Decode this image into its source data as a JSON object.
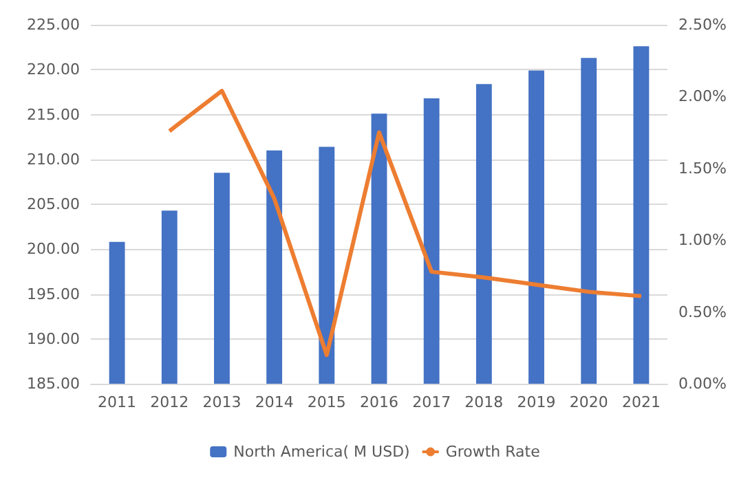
{
  "chart_data": {
    "type": "bar",
    "categories": [
      "2011",
      "2012",
      "2013",
      "2014",
      "2015",
      "2016",
      "2017",
      "2018",
      "2019",
      "2020",
      "2021"
    ],
    "series": [
      {
        "name": "North America( M USD)",
        "color": "#4472c4",
        "values": [
          200.8,
          204.3,
          208.5,
          211.0,
          211.4,
          215.1,
          216.8,
          218.4,
          219.9,
          221.3,
          222.6
        ]
      },
      {
        "name": "Growth Rate",
        "type": "line",
        "axis": "y2",
        "color": "#ed7d31",
        "values": [
          null,
          1.76,
          2.04,
          1.29,
          0.2,
          1.75,
          0.78,
          0.74,
          0.69,
          0.64,
          0.61
        ]
      }
    ],
    "ylim": [
      185,
      225
    ],
    "yticks": [
      {
        "value": 185,
        "label": "185.00"
      },
      {
        "value": 190,
        "label": "190.00"
      },
      {
        "value": 195,
        "label": "195.00"
      },
      {
        "value": 200,
        "label": "200.00"
      },
      {
        "value": 205,
        "label": "205.00"
      },
      {
        "value": 210,
        "label": "210.00"
      },
      {
        "value": 215,
        "label": "215.00"
      },
      {
        "value": 220,
        "label": "220.00"
      },
      {
        "value": 225,
        "label": "225.00"
      }
    ],
    "y2lim": [
      0,
      2.5
    ],
    "y2ticks": [
      {
        "value": 0,
        "label": "0.00%"
      },
      {
        "value": 0.5,
        "label": "0.50%"
      },
      {
        "value": 1,
        "label": "1.00%"
      },
      {
        "value": 1.5,
        "label": "1.50%"
      },
      {
        "value": 2,
        "label": "2.00%"
      },
      {
        "value": 2.5,
        "label": "2.50%"
      }
    ],
    "grid": "y",
    "legend": "bottom",
    "marker": "none"
  }
}
